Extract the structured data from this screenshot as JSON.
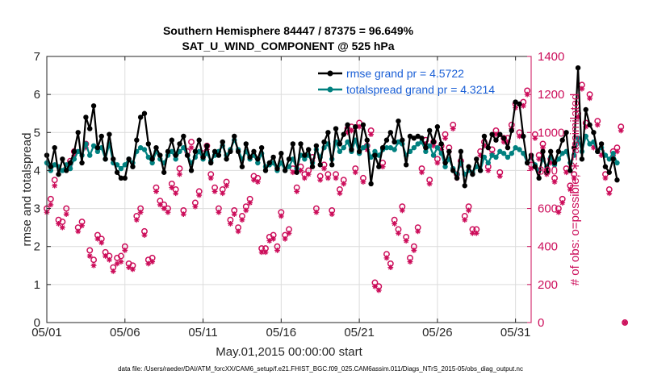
{
  "title_line1": "Southern Hemisphere 84447 / 87375 = 96.649%",
  "title_line2": "SAT_U_WIND_COMPONENT @ 525 hPa",
  "footnote": "data file: /Users/raeder/DAI/ATM_forcXX/CAM6_setup/f.e21.FHIST_BGC.f09_025.CAM6assim.011/Diags_NTrS_2015-05/obs_diag_output.nc",
  "colors": {
    "rmse": "#000000",
    "spread": "#00807f",
    "obs": "#cc0d5a",
    "legend_text": "#1a5fd6",
    "right_axis": "#cc0d5a"
  },
  "chart_data": {
    "type": "line",
    "xlabel": "May.01,2015 00:00:00 start",
    "ylabel_left": "rmse and totalspread",
    "ylabel_right": "# of obs: o=possible; ∗=assimilated",
    "x_ticks": [
      "05/01",
      "05/06",
      "05/11",
      "05/16",
      "05/21",
      "05/26",
      "05/31"
    ],
    "x_tick_days": [
      0,
      5,
      10,
      15,
      20,
      25,
      30
    ],
    "xlim": [
      0,
      31
    ],
    "ylim_left": [
      0,
      7
    ],
    "y_ticks_left": [
      0,
      1,
      2,
      3,
      4,
      5,
      6,
      7
    ],
    "ylim_right": [
      0,
      1400
    ],
    "y_ticks_right": [
      0,
      200,
      400,
      600,
      800,
      1000,
      1200,
      1400
    ],
    "grid": true,
    "legend": {
      "position": "top-right",
      "entries": [
        "rmse grand pr = 4.5722",
        "totalspread grand pr = 4.3214"
      ]
    },
    "x_step_days": 0.25,
    "series": [
      {
        "name": "rmse",
        "axis": "left",
        "values": [
          4.4,
          4.1,
          4.6,
          3.9,
          4.3,
          4.0,
          4.2,
          4.5,
          5.0,
          4.2,
          5.4,
          5.1,
          5.7,
          4.6,
          4.9,
          4.3,
          4.95,
          4.3,
          3.95,
          3.8,
          3.8,
          4.3,
          4.1,
          4.8,
          5.4,
          5.5,
          4.7,
          4.3,
          4.6,
          4.4,
          3.95,
          4.5,
          4.8,
          4.4,
          4.7,
          4.9,
          4.4,
          4.0,
          4.5,
          4.8,
          4.35,
          4.65,
          4.2,
          4.5,
          4.4,
          4.75,
          4.3,
          4.5,
          4.9,
          4.5,
          4.1,
          4.7,
          4.35,
          4.5,
          4.3,
          4.6,
          4.0,
          4.2,
          4.35,
          4.05,
          4.45,
          4.0,
          4.3,
          4.7,
          3.95,
          4.7,
          4.4,
          4.55,
          4.1,
          4.65,
          4.15,
          4.75,
          5.0,
          4.15,
          5.1,
          4.7,
          4.95,
          5.2,
          4.55,
          5.15,
          4.5,
          5.2,
          4.8,
          3.65,
          4.4,
          4.1,
          4.6,
          4.8,
          5.0,
          4.75,
          5.3,
          4.8,
          4.15,
          4.9,
          4.85,
          4.9,
          4.85,
          4.6,
          5.05,
          4.75,
          5.15,
          4.7,
          4.2,
          4.5,
          4.0,
          3.8,
          4.5,
          3.6,
          4.1,
          3.9,
          4.3,
          4.0,
          4.9,
          4.6,
          4.95,
          4.8,
          4.95,
          4.85,
          4.6,
          5.05,
          5.8,
          5.75,
          4.9,
          4.2,
          4.4,
          4.1,
          3.8,
          4.5,
          3.95,
          4.5,
          4.2,
          4.5,
          4.8,
          5.0,
          4.0,
          4.6,
          6.7,
          4.3,
          5.6,
          5.2,
          5.0,
          4.5,
          4.7,
          4.1,
          3.95,
          4.3,
          3.75
        ]
      },
      {
        "name": "totalspread",
        "axis": "left",
        "values": [
          4.2,
          4.0,
          4.15,
          4.1,
          4.0,
          4.15,
          4.05,
          4.3,
          4.5,
          4.4,
          4.7,
          4.4,
          4.65,
          4.5,
          4.6,
          4.3,
          4.7,
          4.2,
          4.15,
          4.05,
          4.15,
          4.3,
          4.2,
          4.5,
          4.6,
          4.55,
          4.35,
          4.2,
          4.5,
          4.3,
          4.2,
          4.4,
          4.5,
          4.3,
          4.5,
          4.6,
          4.4,
          4.2,
          4.35,
          4.5,
          4.3,
          4.45,
          4.25,
          4.4,
          4.5,
          4.65,
          4.4,
          4.55,
          4.8,
          4.55,
          4.3,
          4.5,
          4.3,
          4.4,
          4.2,
          4.45,
          4.1,
          4.15,
          4.2,
          4.0,
          4.2,
          4.0,
          4.1,
          4.3,
          4.05,
          4.4,
          4.3,
          4.4,
          4.2,
          4.55,
          4.35,
          4.6,
          4.7,
          4.3,
          4.75,
          4.5,
          4.6,
          4.75,
          4.5,
          4.8,
          4.45,
          4.6,
          4.65,
          4.35,
          4.5,
          4.4,
          4.55,
          4.6,
          4.6,
          4.55,
          4.75,
          4.7,
          4.4,
          4.5,
          4.6,
          4.7,
          4.75,
          4.5,
          4.65,
          4.4,
          4.6,
          4.45,
          4.1,
          4.3,
          4.05,
          3.9,
          4.2,
          3.9,
          4.0,
          3.95,
          4.1,
          4.0,
          4.35,
          4.2,
          4.4,
          4.35,
          4.5,
          4.45,
          4.35,
          4.45,
          4.6,
          4.55,
          4.45,
          4.2,
          4.35,
          4.15,
          4.0,
          4.3,
          4.1,
          4.35,
          4.15,
          4.3,
          4.45,
          4.5,
          4.2,
          4.4,
          4.85,
          4.5,
          4.9,
          4.7,
          4.75,
          4.5,
          4.6,
          4.4,
          4.3,
          4.45,
          4.2
        ]
      },
      {
        "name": "possible",
        "axis": "right",
        "marker": "o",
        "values": [
          600,
          650,
          750,
          540,
          530,
          600,
          850,
          900,
          500,
          530,
          940,
          380,
          330,
          460,
          440,
          370,
          350,
          290,
          340,
          350,
          400,
          310,
          300,
          560,
          600,
          480,
          330,
          340,
          710,
          640,
          620,
          600,
          730,
          700,
          810,
          590,
          900,
          950,
          630,
          690,
          890,
          930,
          780,
          710,
          600,
          700,
          740,
          540,
          590,
          500,
          560,
          610,
          650,
          770,
          760,
          390,
          390,
          450,
          460,
          400,
          580,
          460,
          490,
          810,
          710,
          820,
          780,
          800,
          870,
          600,
          770,
          830,
          780,
          590,
          780,
          700,
          750,
          1020,
          1030,
          810,
          1050,
          760,
          930,
          1010,
          210,
          190,
          840,
          360,
          310,
          540,
          490,
          610,
          450,
          340,
          400,
          500,
          810,
          960,
          750,
          950,
          860,
          930,
          990,
          920,
          1040,
          780,
          850,
          560,
          610,
          490,
          490,
          900,
          950,
          820,
          910,
          1010,
          790,
          970,
          970,
          1040,
          1150,
          1000,
          1160,
          1220,
          830,
          990,
          880,
          940,
          800,
          860,
          760,
          600,
          650,
          810,
          720,
          780,
          1100,
          1250,
          1050,
          1200,
          940,
          1060,
          900,
          780,
          700,
          900,
          920,
          1030,
          0
        ]
      },
      {
        "name": "assimilated",
        "axis": "right",
        "marker": "*",
        "values": [
          580,
          620,
          720,
          520,
          500,
          570,
          830,
          880,
          480,
          510,
          920,
          350,
          300,
          440,
          420,
          350,
          330,
          270,
          310,
          320,
          380,
          290,
          280,
          540,
          580,
          460,
          310,
          320,
          690,
          620,
          600,
          580,
          710,
          680,
          780,
          570,
          880,
          920,
          610,
          670,
          870,
          910,
          760,
          690,
          580,
          680,
          720,
          520,
          570,
          480,
          540,
          590,
          630,
          750,
          740,
          370,
          370,
          430,
          440,
          380,
          560,
          440,
          470,
          790,
          690,
          800,
          760,
          780,
          850,
          580,
          750,
          810,
          760,
          570,
          760,
          680,
          730,
          1000,
          1010,
          790,
          1030,
          740,
          910,
          990,
          190,
          170,
          820,
          340,
          290,
          520,
          470,
          590,
          430,
          320,
          380,
          480,
          790,
          940,
          730,
          930,
          840,
          910,
          970,
          900,
          1020,
          760,
          830,
          540,
          590,
          470,
          470,
          880,
          930,
          800,
          890,
          990,
          770,
          950,
          950,
          1020,
          1130,
          980,
          1140,
          1200,
          810,
          970,
          860,
          920,
          780,
          840,
          740,
          580,
          630,
          790,
          700,
          760,
          1080,
          1230,
          1030,
          1180,
          920,
          1040,
          880,
          760,
          680,
          880,
          900,
          1010,
          0
        ]
      }
    ]
  }
}
